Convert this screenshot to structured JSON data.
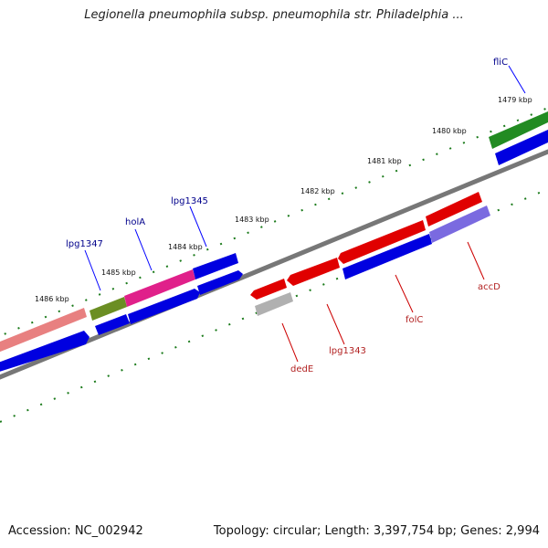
{
  "title": "Legionella pneumophila subsp. pneumophila str. Philadelphia ...",
  "footer": {
    "accession": "Accession: NC_002942",
    "summary": "Topology: circular; Length: 3,397,754 bp; Genes: 2,994"
  },
  "ticks": [
    {
      "label": "1479 kbp"
    },
    {
      "label": "1480 kbp"
    },
    {
      "label": "1481 kbp"
    },
    {
      "label": "1482 kbp"
    },
    {
      "label": "1483 kbp"
    },
    {
      "label": "1484 kbp"
    },
    {
      "label": "1485 kbp"
    },
    {
      "label": "1486 kbp"
    }
  ],
  "genes_forward": [
    {
      "name": "fliC"
    },
    {
      "name": "lpg1345"
    },
    {
      "name": "holA"
    },
    {
      "name": "lpg1347"
    }
  ],
  "genes_reverse": [
    {
      "name": "accD"
    },
    {
      "name": "folC"
    },
    {
      "name": "lpg1343"
    },
    {
      "name": "dedE"
    }
  ],
  "colors": {
    "forward_label": "#00008b",
    "reverse_label": "#b22222",
    "tick": "#1a7a1a",
    "backbone": "#777777"
  }
}
